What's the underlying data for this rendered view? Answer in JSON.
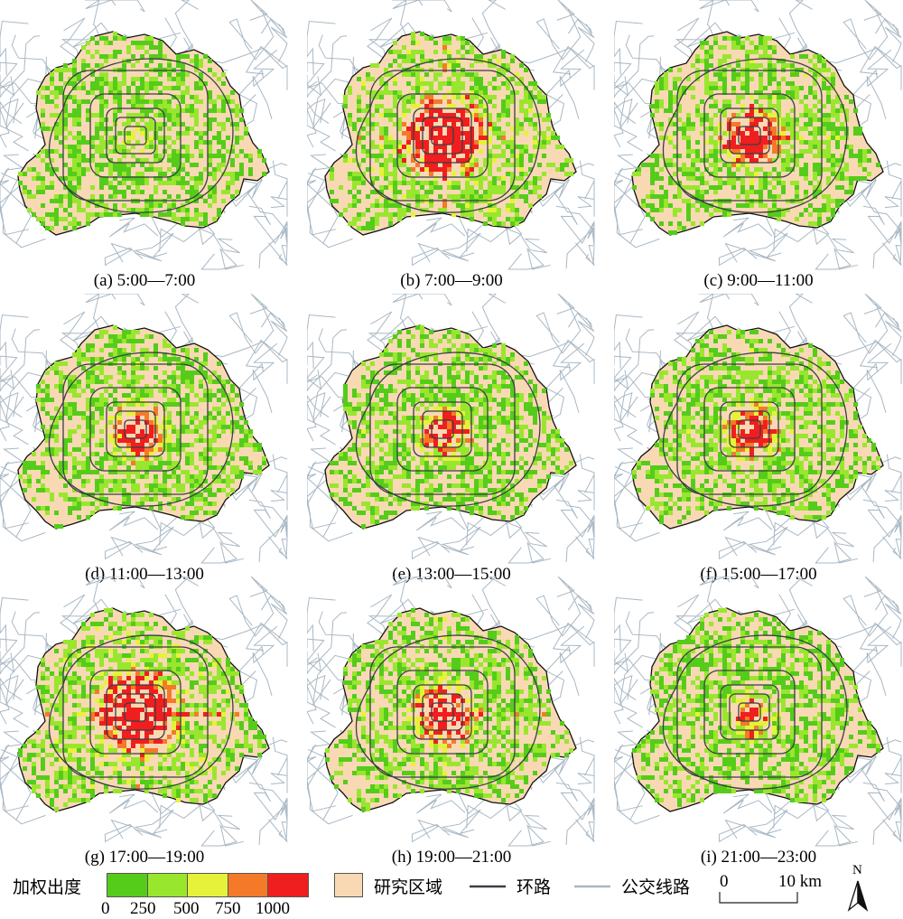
{
  "panels": [
    {
      "id": "a",
      "caption": "(a) 5:00—7:00",
      "intensity": 0.08,
      "core": 0.2,
      "spread": 0.05
    },
    {
      "id": "b",
      "caption": "(b) 7:00—9:00",
      "intensity": 0.75,
      "core": 1.0,
      "spread": 0.35
    },
    {
      "id": "c",
      "caption": "(c) 9:00—11:00",
      "intensity": 0.5,
      "core": 0.8,
      "spread": 0.2
    },
    {
      "id": "d",
      "caption": "(d) 11:00—13:00",
      "intensity": 0.4,
      "core": 0.7,
      "spread": 0.15
    },
    {
      "id": "e",
      "caption": "(e) 13:00—15:00",
      "intensity": 0.35,
      "core": 0.6,
      "spread": 0.12
    },
    {
      "id": "f",
      "caption": "(f) 15:00—17:00",
      "intensity": 0.42,
      "core": 0.7,
      "spread": 0.15
    },
    {
      "id": "g",
      "caption": "(g) 17:00—19:00",
      "intensity": 0.78,
      "core": 1.0,
      "spread": 0.35
    },
    {
      "id": "h",
      "caption": "(h) 19:00—21:00",
      "intensity": 0.5,
      "core": 0.8,
      "spread": 0.2
    },
    {
      "id": "i",
      "caption": "(i) 21:00—23:00",
      "intensity": 0.25,
      "core": 0.5,
      "spread": 0.08
    }
  ],
  "legend": {
    "title": "加权出度",
    "ticks": [
      "0",
      "250",
      "500",
      "750",
      "1000"
    ],
    "ramp_colors": [
      "#55cc1a",
      "#99e62e",
      "#e6f23a",
      "#f47a2a",
      "#f01e1e"
    ],
    "study_area_label": "研究区域",
    "study_area_color": "#f8d9b4",
    "ring_road_label": "环路",
    "ring_road_color": "#3a3f45",
    "bus_line_label": "公交线路",
    "bus_line_color": "#a9b8c4",
    "scale_zero": "0",
    "scale_label": "10 km",
    "north_label": "N"
  }
}
